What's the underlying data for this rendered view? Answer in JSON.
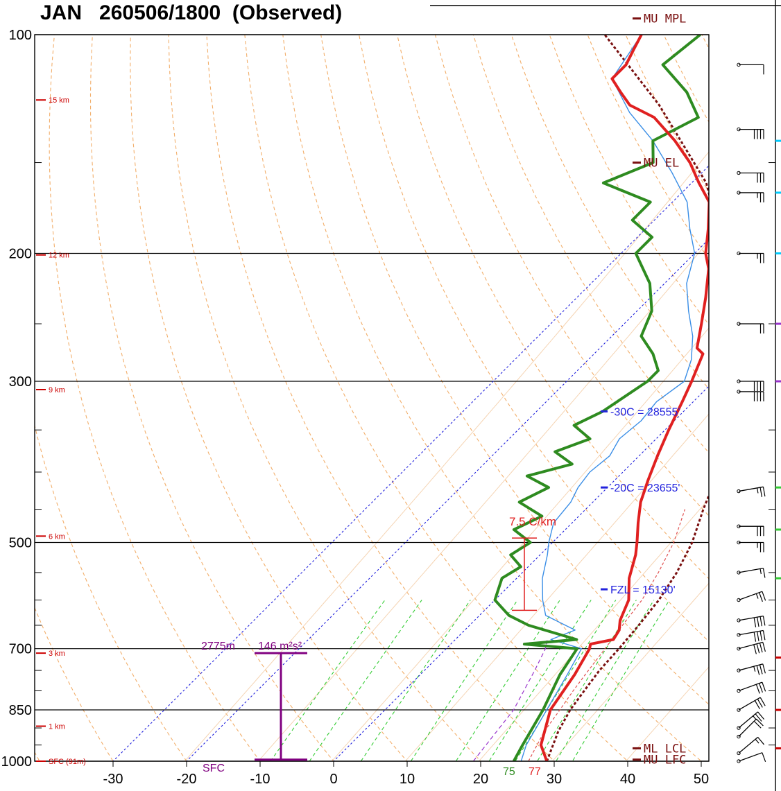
{
  "title": "JAN   260506/1800  (Observed)",
  "chart_data": {
    "type": "line",
    "title": "JAN   260506/1800  (Observed)",
    "x_axis": {
      "min": -30,
      "max": 50,
      "ticks": [
        -30,
        -20,
        -10,
        0,
        10,
        20,
        30,
        40,
        50
      ],
      "unit": "C"
    },
    "y_axis": {
      "scale": "log-pressure",
      "range": [
        1000,
        100
      ],
      "ticks": [
        100,
        200,
        300,
        500,
        700,
        850,
        1000
      ],
      "tick_labels": [
        "100",
        "200",
        "300",
        "500",
        "700",
        "850",
        "1000"
      ]
    },
    "height_markers": [
      "15 km",
      "12 km",
      "9 km",
      "6 km",
      "3 km",
      "1 km",
      "SFC (91m)"
    ],
    "colors": {
      "temperature": "#e02020",
      "dewpoint": "#2e8b20",
      "wetbulb": "#3a8ee6",
      "parcel": "#7a1010",
      "isotherm": "#2222dd",
      "dry_adiabat": "#f0a050",
      "mixing_ratio": "#33cc33",
      "annotation": "#7a1010",
      "helicity": "#800080"
    },
    "series": [
      {
        "name": "",
        "role": "temperature",
        "points": [
          [
            29,
            1000
          ],
          [
            26,
            950
          ],
          [
            22.5,
            850
          ],
          [
            21,
            760
          ],
          [
            19.5,
            700
          ],
          [
            19,
            690
          ],
          [
            21.5,
            680
          ],
          [
            21,
            660
          ],
          [
            19.8,
            640
          ],
          [
            18.2,
            600
          ],
          [
            15.3,
            560
          ],
          [
            13,
            520
          ],
          [
            11.5,
            500
          ],
          [
            9,
            470
          ],
          [
            6.5,
            440
          ],
          [
            4.5,
            410
          ],
          [
            2.5,
            380
          ],
          [
            0.5,
            350
          ],
          [
            -1.5,
            320
          ],
          [
            -3,
            300
          ],
          [
            -5.2,
            275
          ],
          [
            -6.8,
            270
          ],
          [
            -9.5,
            250
          ],
          [
            -12.5,
            230
          ],
          [
            -16,
            210
          ],
          [
            -18.5,
            200
          ],
          [
            -21.5,
            185
          ],
          [
            -25,
            170
          ],
          [
            -29,
            160
          ],
          [
            -33,
            150
          ],
          [
            -38,
            140
          ],
          [
            -44,
            130
          ],
          [
            -49,
            125
          ],
          [
            -52,
            120
          ],
          [
            -55,
            115
          ],
          [
            -55,
            110
          ],
          [
            -56,
            105
          ],
          [
            -57,
            100
          ]
        ]
      },
      {
        "name": "",
        "role": "dewpoint",
        "points": [
          [
            24.5,
            1000
          ],
          [
            23.5,
            950
          ],
          [
            21.5,
            850
          ],
          [
            19,
            760
          ],
          [
            17.8,
            700
          ],
          [
            10,
            690
          ],
          [
            16.5,
            680
          ],
          [
            8,
            650
          ],
          [
            4,
            630
          ],
          [
            0,
            600
          ],
          [
            -2,
            560
          ],
          [
            -1,
            540
          ],
          [
            -4,
            520
          ],
          [
            -3,
            500
          ],
          [
            -7,
            480
          ],
          [
            -5,
            460
          ],
          [
            -10,
            440
          ],
          [
            -8,
            420
          ],
          [
            -12.5,
            405
          ],
          [
            -8,
            390
          ],
          [
            -12,
            375
          ],
          [
            -9,
            360
          ],
          [
            -13,
            345
          ],
          [
            -11,
            330
          ],
          [
            -9,
            300
          ],
          [
            -9,
            290
          ],
          [
            -12,
            275
          ],
          [
            -16,
            260
          ],
          [
            -18,
            240
          ],
          [
            -22,
            220
          ],
          [
            -28,
            200
          ],
          [
            -28,
            190
          ],
          [
            -33,
            180
          ],
          [
            -33,
            170
          ],
          [
            -42,
            160
          ],
          [
            -38,
            150
          ],
          [
            -41,
            140
          ],
          [
            -38,
            130
          ],
          [
            -43,
            120
          ],
          [
            -50,
            110
          ],
          [
            -49,
            100
          ]
        ]
      },
      {
        "name": "",
        "role": "wetbulb",
        "points": [
          [
            25.5,
            1000
          ],
          [
            24,
            950
          ],
          [
            22,
            850
          ],
          [
            20,
            760
          ],
          [
            18.4,
            700
          ],
          [
            13,
            680
          ],
          [
            15,
            660
          ],
          [
            9,
            630
          ],
          [
            6.5,
            600
          ],
          [
            3.5,
            560
          ],
          [
            1,
            520
          ],
          [
            -0.5,
            500
          ],
          [
            -2.5,
            470
          ],
          [
            -3,
            440
          ],
          [
            -4,
            420
          ],
          [
            -4.5,
            400
          ],
          [
            -4,
            380
          ],
          [
            -5,
            360
          ],
          [
            -4.5,
            340
          ],
          [
            -5,
            320
          ],
          [
            -4,
            300
          ],
          [
            -6,
            280
          ],
          [
            -9,
            260
          ],
          [
            -13,
            240
          ],
          [
            -17,
            220
          ],
          [
            -20,
            200
          ],
          [
            -24,
            185
          ],
          [
            -28,
            170
          ],
          [
            -34,
            155
          ],
          [
            -41,
            140
          ],
          [
            -48,
            128
          ],
          [
            -55,
            115
          ],
          [
            -57,
            100
          ]
        ]
      },
      {
        "name": "",
        "role": "mu_parcel",
        "points": [
          [
            29,
            1000
          ],
          [
            26.5,
            910
          ],
          [
            25.2,
            850
          ],
          [
            24.5,
            800
          ],
          [
            23.8,
            750
          ],
          [
            23.5,
            700
          ],
          [
            23,
            650
          ],
          [
            22.3,
            600
          ],
          [
            21,
            550
          ],
          [
            19,
            500
          ],
          [
            16,
            450
          ],
          [
            13,
            400
          ],
          [
            9,
            350
          ],
          [
            3,
            300
          ],
          [
            -5,
            250
          ],
          [
            -16,
            200
          ],
          [
            -28,
            160
          ],
          [
            -45,
            125
          ],
          [
            -62,
            100
          ]
        ]
      },
      {
        "name": "",
        "role": "ml_parcel",
        "points": [
          [
            26.5,
            1000
          ],
          [
            24.6,
            910
          ],
          [
            23.8,
            850
          ],
          [
            23,
            800
          ],
          [
            22.3,
            750
          ],
          [
            21.6,
            700
          ],
          [
            20.8,
            650
          ],
          [
            20,
            600
          ],
          [
            18.5,
            550
          ],
          [
            16.5,
            500
          ],
          [
            13.5,
            450
          ]
        ]
      },
      {
        "name": "",
        "role": "downdraft",
        "points": [
          [
            19,
            1000
          ],
          [
            17.5,
            850
          ],
          [
            15,
            750
          ],
          [
            13.5,
            700
          ],
          [
            12.5,
            680
          ]
        ]
      }
    ],
    "isotherm_labels": [
      "-30C = 28555'",
      "-20C = 23655'",
      "FZL = 15130'"
    ],
    "parcel_labels": [
      "MU MPL",
      "MU EL",
      "ML LCL",
      "MU LFC"
    ],
    "lapse_rate": {
      "label": "7.5 C/km"
    },
    "helicity": {
      "height_label": "2775m",
      "value_label": "146 m²s²"
    },
    "sfc_label": "SFC",
    "surface_values": {
      "dewpoint": "75",
      "temperature": "77"
    },
    "wind_barbs": [
      {
        "p": 1000,
        "dir": 250,
        "kt": 10
      },
      {
        "p": 975,
        "dir": 230,
        "kt": 15
      },
      {
        "p": 925,
        "dir": 225,
        "kt": 20
      },
      {
        "p": 900,
        "dir": 230,
        "kt": 25
      },
      {
        "p": 850,
        "dir": 240,
        "kt": 30
      },
      {
        "p": 800,
        "dir": 250,
        "kt": 30
      },
      {
        "p": 750,
        "dir": 255,
        "kt": 35
      },
      {
        "p": 700,
        "dir": 255,
        "kt": 40
      },
      {
        "p": 670,
        "dir": 260,
        "kt": 40
      },
      {
        "p": 640,
        "dir": 260,
        "kt": 40
      },
      {
        "p": 600,
        "dir": 250,
        "kt": 25
      },
      {
        "p": 550,
        "dir": 260,
        "kt": 15
      },
      {
        "p": 500,
        "dir": 270,
        "kt": 25
      },
      {
        "p": 475,
        "dir": 270,
        "kt": 30
      },
      {
        "p": 425,
        "dir": 260,
        "kt": 25
      },
      {
        "p": 310,
        "dir": 270,
        "kt": 40
      },
      {
        "p": 300,
        "dir": 270,
        "kt": 40
      },
      {
        "p": 250,
        "dir": 270,
        "kt": 20
      },
      {
        "p": 200,
        "dir": 270,
        "kt": 25
      },
      {
        "p": 165,
        "dir": 270,
        "kt": 25
      },
      {
        "p": 155,
        "dir": 270,
        "kt": 30
      },
      {
        "p": 135,
        "dir": 270,
        "kt": 40
      },
      {
        "p": 110,
        "dir": 270,
        "kt": 10
      }
    ]
  }
}
